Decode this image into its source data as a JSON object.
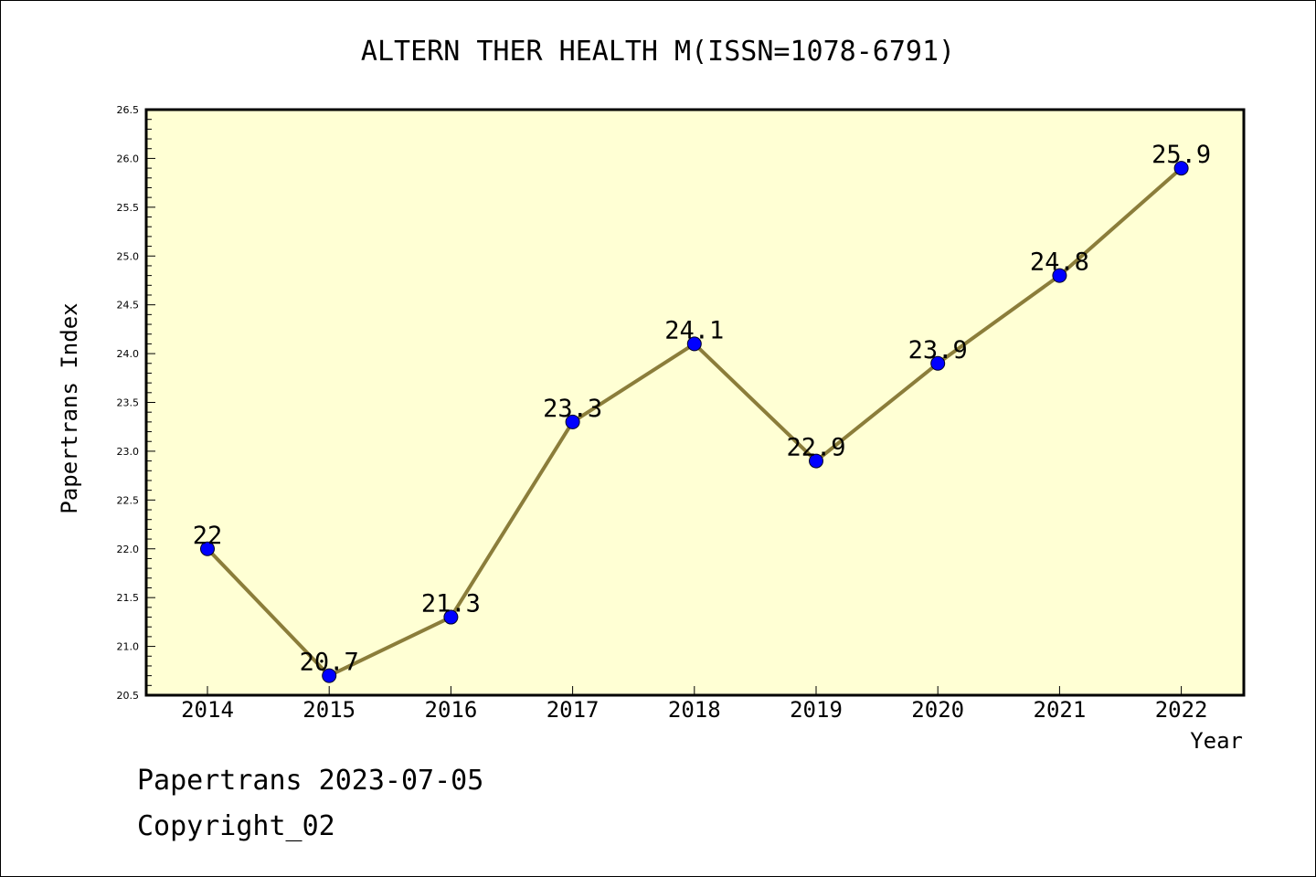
{
  "chart_data": {
    "type": "line",
    "title": "ALTERN THER HEALTH M(ISSN=1078-6791)",
    "xlabel": "Year",
    "ylabel": "Papertrans Index",
    "categories": [
      "2014",
      "2015",
      "2016",
      "2017",
      "2018",
      "2019",
      "2020",
      "2021",
      "2022"
    ],
    "values": [
      22,
      20.7,
      21.3,
      23.3,
      24.1,
      22.9,
      23.9,
      24.8,
      25.9
    ],
    "data_labels": [
      "22",
      "20.7",
      "21.3",
      "23.3",
      "24.1",
      "22.9",
      "23.9",
      "24.8",
      "25.9"
    ],
    "ylim": [
      20.5,
      26.5
    ],
    "yticks": [
      "20.5",
      "21.0",
      "21.5",
      "22.0",
      "22.5",
      "23.0",
      "23.5",
      "24.0",
      "24.5",
      "25.0",
      "25.5",
      "26.0",
      "26.5"
    ],
    "grid": false,
    "colors": {
      "plot_background": "#ffffd4",
      "line": "#8b7d3a",
      "marker": "#0000ff"
    }
  },
  "footer": {
    "line1": "Papertrans 2023-07-05",
    "line2": "Copyright_02"
  }
}
